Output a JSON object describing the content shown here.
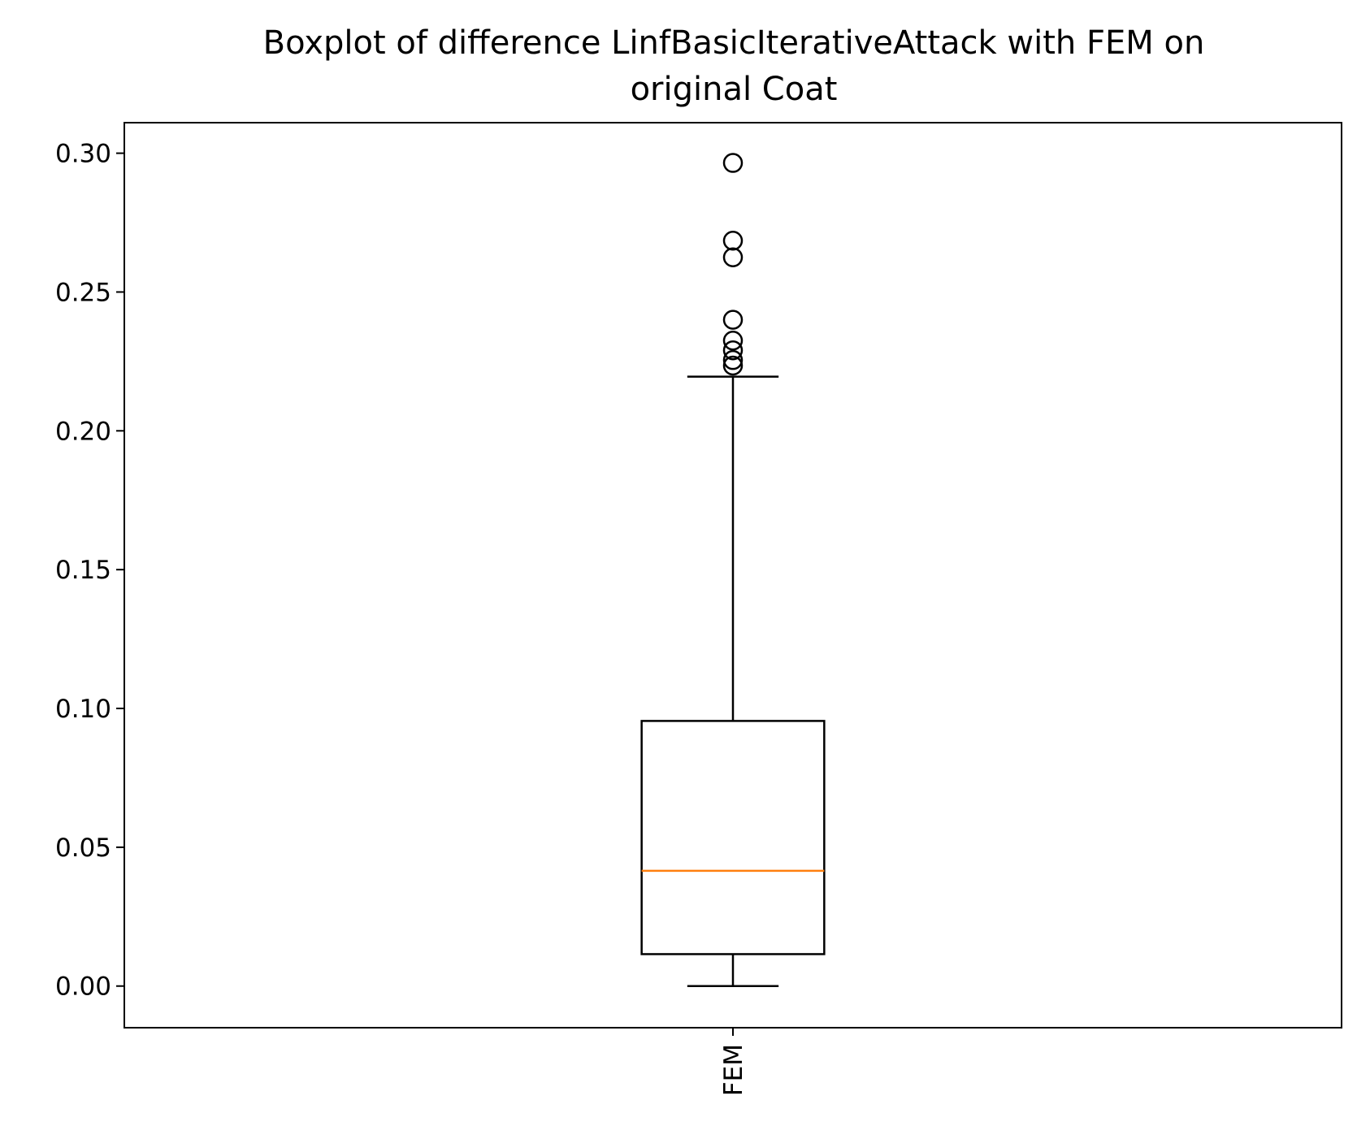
{
  "chart_data": {
    "type": "boxplot",
    "title_lines": [
      "Boxplot of difference LinfBasicIterativeAttack with FEM on",
      "original Coat"
    ],
    "xlabel": "",
    "ylabel": "",
    "categories": [
      "FEM"
    ],
    "ylim": [
      -0.015,
      0.311
    ],
    "yticks": [
      "0.00",
      "0.05",
      "0.10",
      "0.15",
      "0.20",
      "0.25",
      "0.30"
    ],
    "grid": false,
    "boxes": [
      {
        "category": "FEM",
        "whisker_low": 0.0,
        "q1": 0.0115,
        "median": 0.0415,
        "q3": 0.0955,
        "whisker_high": 0.2195,
        "outliers": [
          0.2965,
          0.2685,
          0.2625,
          0.24,
          0.2325,
          0.229,
          0.2255,
          0.2235
        ]
      }
    ],
    "colors": {
      "median": "#ff7f0e",
      "box": "#000000"
    }
  }
}
